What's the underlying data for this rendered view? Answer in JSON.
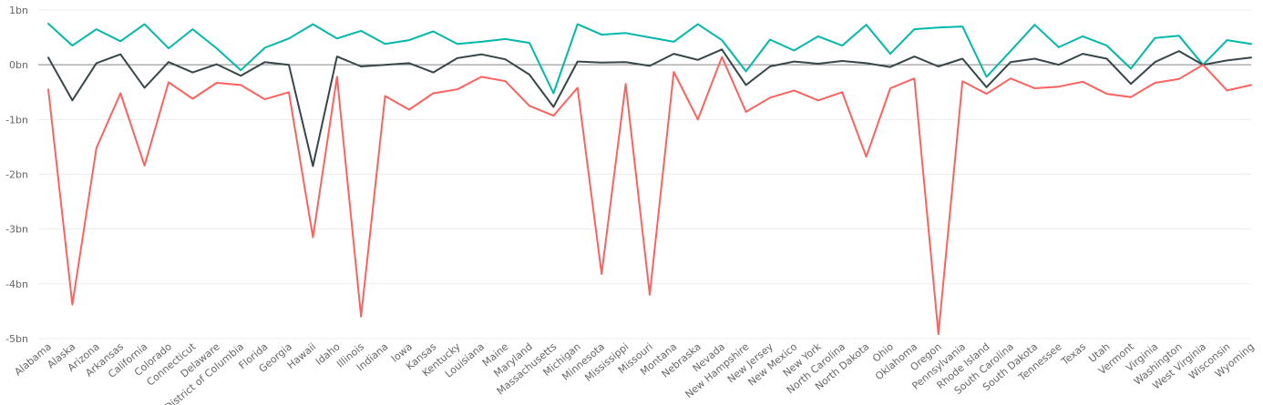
{
  "chart_data": {
    "type": "line",
    "title": "",
    "xlabel": "",
    "ylabel": "",
    "ylim": [
      -5,
      1
    ],
    "y_ticks": [
      {
        "value": 1,
        "label": "1bn"
      },
      {
        "value": 0,
        "label": "0bn"
      },
      {
        "value": -1,
        "label": "-1bn"
      },
      {
        "value": -2,
        "label": "-2bn"
      },
      {
        "value": -3,
        "label": "-3bn"
      },
      {
        "value": -4,
        "label": "-4bn"
      },
      {
        "value": -5,
        "label": "-5bn"
      }
    ],
    "grid": true,
    "legend": "none",
    "categories": [
      "Alabama",
      "Alaska",
      "Arizona",
      "Arkansas",
      "California",
      "Colorado",
      "Connecticut",
      "Delaware",
      "District of Columbia",
      "Florida",
      "Georgia",
      "Hawaii",
      "Idaho",
      "Illinois",
      "Indiana",
      "Iowa",
      "Kansas",
      "Kentucky",
      "Louisiana",
      "Maine",
      "Maryland",
      "Massachusetts",
      "Michigan",
      "Minnesota",
      "Mississippi",
      "Missouri",
      "Montana",
      "Nebraska",
      "Nevada",
      "New Hampshire",
      "New Jersey",
      "New Mexico",
      "New York",
      "North Carolina",
      "North Dakota",
      "Ohio",
      "Oklahoma",
      "Oregon",
      "Pennsylvania",
      "Rhode Island",
      "South Carolina",
      "South Dakota",
      "Tennessee",
      "Texas",
      "Utah",
      "Vermont",
      "Virginia",
      "Washington",
      "West Virginia",
      "Wisconsin",
      "Wyoming"
    ],
    "series": [
      {
        "color": "#01b8aa",
        "values": [
          0.75,
          0.35,
          0.65,
          0.43,
          0.74,
          0.3,
          0.65,
          0.3,
          -0.1,
          0.31,
          0.48,
          0.74,
          0.48,
          0.62,
          0.38,
          0.45,
          0.61,
          0.38,
          0.42,
          0.47,
          0.4,
          -0.52,
          0.74,
          0.55,
          0.58,
          0.5,
          0.42,
          0.74,
          0.45,
          -0.12,
          0.46,
          0.26,
          0.52,
          0.35,
          0.73,
          0.2,
          0.65,
          0.68,
          0.7,
          -0.22,
          0.25,
          0.73,
          0.32,
          0.52,
          0.35,
          -0.07,
          0.49,
          0.53,
          0.0,
          0.45,
          0.38
        ]
      },
      {
        "color": "#374649",
        "values": [
          0.13,
          -0.65,
          0.03,
          0.19,
          -0.42,
          0.05,
          -0.14,
          0.01,
          -0.2,
          0.05,
          0.0,
          -1.85,
          0.15,
          -0.03,
          0.0,
          0.03,
          -0.14,
          0.12,
          0.19,
          0.1,
          -0.18,
          -0.77,
          0.06,
          0.04,
          0.05,
          -0.02,
          0.2,
          0.09,
          0.28,
          -0.37,
          -0.03,
          0.06,
          0.02,
          0.07,
          0.03,
          -0.04,
          0.15,
          -0.03,
          0.11,
          -0.41,
          0.05,
          0.11,
          0.0,
          0.2,
          0.11,
          -0.35,
          0.05,
          0.25,
          0.0,
          0.08,
          0.13
        ]
      },
      {
        "color": "#fd625e",
        "values": [
          -0.45,
          -4.38,
          -1.52,
          -0.52,
          -1.84,
          -0.32,
          -0.62,
          -0.33,
          -0.37,
          -0.63,
          -0.5,
          -3.15,
          -0.22,
          -4.6,
          -0.57,
          -0.82,
          -0.52,
          -0.45,
          -0.22,
          -0.3,
          -0.75,
          -0.93,
          -0.42,
          -3.82,
          -0.35,
          -4.2,
          -0.13,
          -1.0,
          0.14,
          -0.86,
          -0.6,
          -0.47,
          -0.65,
          -0.5,
          -1.68,
          -0.43,
          -0.25,
          -4.92,
          -0.3,
          -0.53,
          -0.25,
          -0.43,
          -0.4,
          -0.31,
          -0.53,
          -0.59,
          -0.33,
          -0.26,
          0.0,
          -0.47,
          -0.37
        ]
      }
    ]
  }
}
